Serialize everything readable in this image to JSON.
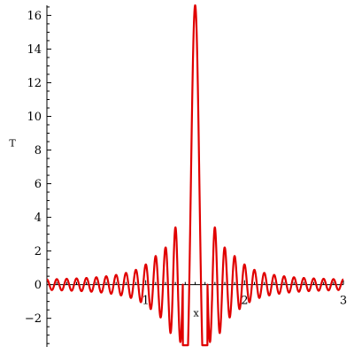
{
  "chart_data": {
    "type": "line",
    "title": "",
    "xlabel": "x",
    "ylabel": "T",
    "xlim": [
      0,
      3
    ],
    "ylim": [
      -3.7,
      16.6
    ],
    "grid": false,
    "legend": "none",
    "x_ticks": [
      1,
      2,
      3
    ],
    "x_tick_labels": [
      "1",
      "2",
      "3"
    ],
    "y_ticks": [
      -2,
      0,
      2,
      4,
      6,
      8,
      10,
      12,
      14,
      16
    ],
    "y_tick_labels": [
      "−2",
      "0",
      "2",
      "4",
      "6",
      "8",
      "10",
      "12",
      "14",
      "16"
    ],
    "series": [
      {
        "color": "#e00000",
        "x": [
          0.0,
          0.1,
          0.2,
          0.3,
          0.4,
          0.5,
          0.6,
          0.7,
          0.8,
          0.9,
          1.0,
          1.1,
          1.2,
          1.26,
          1.33,
          1.4,
          1.47,
          1.5,
          1.53,
          1.6,
          1.67,
          1.74,
          1.8,
          1.9,
          2.0,
          2.1,
          2.2,
          2.3,
          2.4,
          2.5,
          2.6,
          2.7,
          2.8,
          2.9,
          3.0
        ],
        "envelope": [
          0.31,
          0.33,
          0.35,
          0.37,
          0.4,
          0.44,
          0.5,
          0.58,
          0.7,
          0.88,
          1.2,
          1.7,
          2.2,
          3.0,
          3.7,
          4.0,
          12.0,
          16.6,
          12.0,
          4.0,
          3.7,
          3.0,
          2.2,
          1.7,
          1.2,
          0.88,
          0.7,
          0.58,
          0.5,
          0.44,
          0.4,
          0.37,
          0.35,
          0.33,
          0.31
        ],
        "peak": {
          "x": 1.5,
          "y": 16.6
        },
        "minima": [
          {
            "x": 1.42,
            "y": -3.6
          },
          {
            "x": 1.58,
            "y": -3.6
          }
        ],
        "period": 0.1
      }
    ]
  }
}
